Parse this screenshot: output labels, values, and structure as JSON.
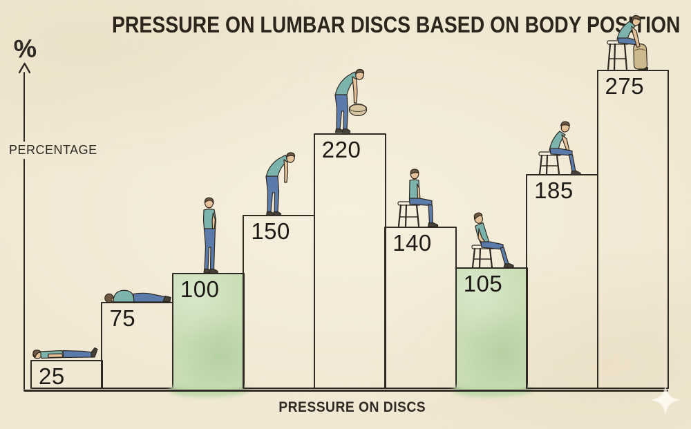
{
  "title": "PRESSURE ON LUMBAR DISCS BASED ON BODY POSITION",
  "y_axis": {
    "symbol": "%",
    "label": "PERCENTAGE"
  },
  "x_axis": {
    "label": "PRESSURE ON DISCS"
  },
  "colors": {
    "paper": "#f1e8d3",
    "ink": "#2e2922",
    "number_text": "#1d1a15",
    "highlight_green": "#c8ddb5",
    "shirt_teal": "#7cb4ad",
    "pants_blue": "#5b7bab",
    "skin": "#e6c29b",
    "hair_brown": "#6f5842",
    "stool_cream": "#f7f1e1",
    "bag_tan": "#cdb98e"
  },
  "chart_data": {
    "type": "bar",
    "title": "PRESSURE ON LUMBAR DISCS BASED ON BODY POSITION",
    "xlabel": "PRESSURE ON DISCS",
    "ylabel": "PERCENTAGE",
    "unit": "%",
    "ylim": [
      0,
      300
    ],
    "grid": false,
    "legend": false,
    "categories": [
      "lying on back",
      "lying on side",
      "standing upright",
      "standing bent forward",
      "standing bent forward holding weight",
      "sitting upright",
      "sitting leaning back",
      "sitting leaning forward",
      "sitting bent forward lifting weight"
    ],
    "values": [
      25,
      75,
      100,
      150,
      220,
      140,
      105,
      185,
      275
    ],
    "highlighted": [
      false,
      false,
      true,
      false,
      false,
      false,
      true,
      false,
      false
    ],
    "figure_icons": [
      "figure-lying-on-back-icon",
      "figure-lying-on-side-icon",
      "figure-standing-icon",
      "figure-standing-bent-icon",
      "figure-standing-bent-weight-icon",
      "figure-sitting-upright-icon",
      "figure-sitting-leaning-back-icon",
      "figure-sitting-leaning-forward-icon",
      "figure-sitting-bent-weight-icon"
    ]
  },
  "decor": {
    "sparkle_icon": "sparkle-icon"
  }
}
